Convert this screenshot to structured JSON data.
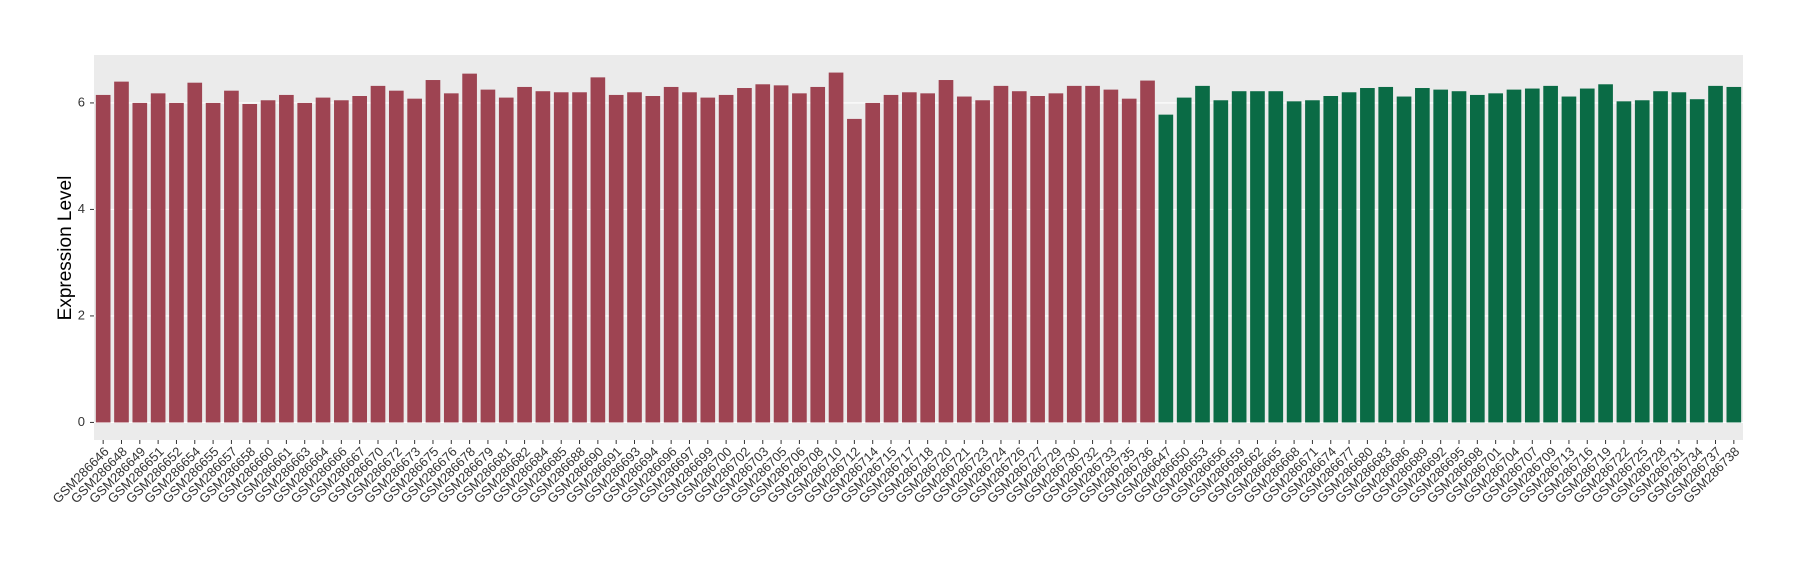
{
  "chart_data": {
    "type": "bar",
    "y_label": "Expression Level",
    "categories": [
      "GSM286646",
      "GSM286648",
      "GSM286649",
      "GSM286651",
      "GSM286652",
      "GSM286654",
      "GSM286655",
      "GSM286657",
      "GSM286658",
      "GSM286660",
      "GSM286661",
      "GSM286663",
      "GSM286664",
      "GSM286666",
      "GSM286667",
      "GSM286670",
      "GSM286672",
      "GSM286673",
      "GSM286675",
      "GSM286676",
      "GSM286678",
      "GSM286679",
      "GSM286681",
      "GSM286682",
      "GSM286684",
      "GSM286685",
      "GSM286688",
      "GSM286690",
      "GSM286691",
      "GSM286693",
      "GSM286694",
      "GSM286696",
      "GSM286697",
      "GSM286699",
      "GSM286700",
      "GSM286702",
      "GSM286703",
      "GSM286705",
      "GSM286706",
      "GSM286708",
      "GSM286710",
      "GSM286712",
      "GSM286714",
      "GSM286715",
      "GSM286717",
      "GSM286718",
      "GSM286720",
      "GSM286721",
      "GSM286723",
      "GSM286724",
      "GSM286726",
      "GSM286727",
      "GSM286729",
      "GSM286730",
      "GSM286732",
      "GSM286733",
      "GSM286735",
      "GSM286736",
      "GSM286647",
      "GSM286650",
      "GSM286653",
      "GSM286656",
      "GSM286659",
      "GSM286662",
      "GSM286665",
      "GSM286668",
      "GSM286671",
      "GSM286674",
      "GSM286677",
      "GSM286680",
      "GSM286683",
      "GSM286686",
      "GSM286689",
      "GSM286692",
      "GSM286695",
      "GSM286698",
      "GSM286701",
      "GSM286704",
      "GSM286707",
      "GSM286709",
      "GSM286713",
      "GSM286716",
      "GSM286719",
      "GSM286722",
      "GSM286725",
      "GSM286728",
      "GSM286731",
      "GSM286734",
      "GSM286737",
      "GSM286738"
    ],
    "values": [
      6.15,
      6.4,
      6.0,
      6.18,
      6.0,
      6.38,
      6.0,
      6.23,
      5.98,
      6.05,
      6.15,
      6.0,
      6.1,
      6.05,
      6.13,
      6.32,
      6.23,
      6.08,
      6.43,
      6.18,
      6.55,
      6.25,
      6.1,
      6.3,
      6.22,
      6.2,
      6.2,
      6.48,
      6.15,
      6.2,
      6.13,
      6.3,
      6.2,
      6.1,
      6.15,
      6.28,
      6.35,
      6.33,
      6.18,
      6.3,
      6.57,
      5.7,
      6.0,
      6.15,
      6.2,
      6.18,
      6.43,
      6.12,
      6.05,
      6.32,
      6.22,
      6.13,
      6.18,
      6.32,
      6.32,
      6.25,
      6.08,
      6.42,
      5.78,
      6.1,
      6.32,
      6.05,
      6.22,
      6.22,
      6.22,
      6.03,
      6.05,
      6.13,
      6.2,
      6.28,
      6.3,
      6.12,
      6.28,
      6.25,
      6.22,
      6.15,
      6.18,
      6.25,
      6.27,
      6.32,
      6.12,
      6.27,
      6.35,
      6.03,
      6.05,
      6.22,
      6.2,
      6.07,
      6.32,
      6.3
    ],
    "colors": [
      "#9e4452",
      "#9e4452",
      "#9e4452",
      "#9e4452",
      "#9e4452",
      "#9e4452",
      "#9e4452",
      "#9e4452",
      "#9e4452",
      "#9e4452",
      "#9e4452",
      "#9e4452",
      "#9e4452",
      "#9e4452",
      "#9e4452",
      "#9e4452",
      "#9e4452",
      "#9e4452",
      "#9e4452",
      "#9e4452",
      "#9e4452",
      "#9e4452",
      "#9e4452",
      "#9e4452",
      "#9e4452",
      "#9e4452",
      "#9e4452",
      "#9e4452",
      "#9e4452",
      "#9e4452",
      "#9e4452",
      "#9e4452",
      "#9e4452",
      "#9e4452",
      "#9e4452",
      "#9e4452",
      "#9e4452",
      "#9e4452",
      "#9e4452",
      "#9e4452",
      "#9e4452",
      "#9e4452",
      "#9e4452",
      "#9e4452",
      "#9e4452",
      "#9e4452",
      "#9e4452",
      "#9e4452",
      "#9e4452",
      "#9e4452",
      "#9e4452",
      "#9e4452",
      "#9e4452",
      "#9e4452",
      "#9e4452",
      "#9e4452",
      "#9e4452",
      "#9e4452",
      "#0a6b45",
      "#0a6b45",
      "#0a6b45",
      "#0a6b45",
      "#0a6b45",
      "#0a6b45",
      "#0a6b45",
      "#0a6b45",
      "#0a6b45",
      "#0a6b45",
      "#0a6b45",
      "#0a6b45",
      "#0a6b45",
      "#0a6b45",
      "#0a6b45",
      "#0a6b45",
      "#0a6b45",
      "#0a6b45",
      "#0a6b45",
      "#0a6b45",
      "#0a6b45",
      "#0a6b45",
      "#0a6b45",
      "#0a6b45",
      "#0a6b45",
      "#0a6b45",
      "#0a6b45",
      "#0a6b45",
      "#0a6b45",
      "#0a6b45",
      "#0a6b45",
      "#0a6b45"
    ],
    "ylim": [
      -0.33,
      6.9
    ],
    "yticks": [
      0,
      2,
      4,
      6
    ],
    "grid": true
  }
}
